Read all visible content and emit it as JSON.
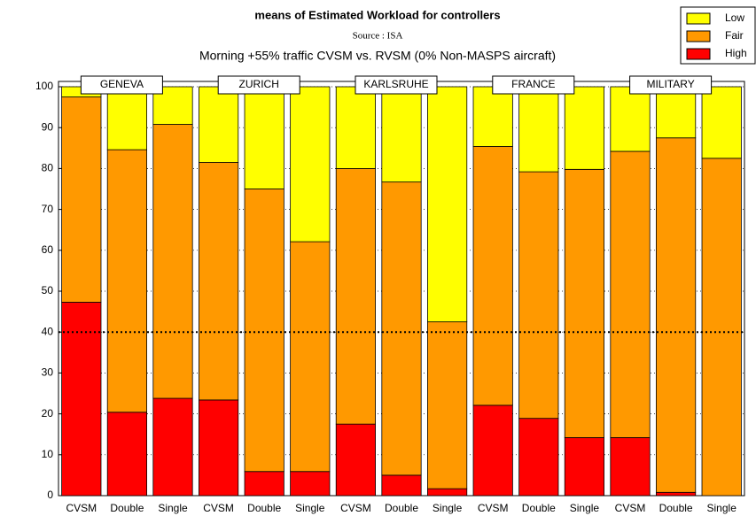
{
  "chart_data": {
    "type": "stacked_bar",
    "title": "means of Estimated Workload for controllers",
    "subtitle": "Source : ISA",
    "description": "Morning +55% traffic CVSM vs. RVSM (0% Non-MASPS aircraft)",
    "categories": [
      "CVSM",
      "Double",
      "Single",
      "CVSM",
      "Double",
      "Single",
      "CVSM",
      "Double",
      "Single",
      "CVSM",
      "Double",
      "Single",
      "CVSM",
      "Double",
      "Single"
    ],
    "groups": [
      "GENEVA",
      "ZURICH",
      "KARLSRUHE",
      "FRANCE",
      "MILITARY"
    ],
    "series": [
      {
        "name": "Low",
        "color": "#ffff00",
        "values": [
          2.5,
          15.4,
          9.2,
          18.5,
          25.0,
          37.9,
          20.0,
          23.3,
          57.5,
          14.6,
          20.8,
          20.2,
          15.8,
          12.5,
          17.5
        ]
      },
      {
        "name": "Fair",
        "color": "#ff9900",
        "values": [
          50.2,
          64.2,
          67.0,
          58.1,
          69.1,
          56.2,
          62.5,
          71.7,
          40.8,
          63.3,
          60.3,
          65.6,
          70.0,
          86.7,
          82.5
        ]
      },
      {
        "name": "High",
        "color": "#ff0000",
        "values": [
          47.3,
          20.4,
          23.8,
          23.4,
          5.9,
          5.9,
          17.5,
          5.0,
          1.7,
          22.1,
          18.9,
          14.2,
          14.2,
          0.8,
          0
        ]
      }
    ],
    "ylim": [
      0,
      100
    ],
    "yticks": [
      0,
      10,
      20,
      30,
      40,
      50,
      60,
      70,
      80,
      90,
      100
    ],
    "grid": true,
    "reference_line": 40,
    "legend": "top-right"
  }
}
